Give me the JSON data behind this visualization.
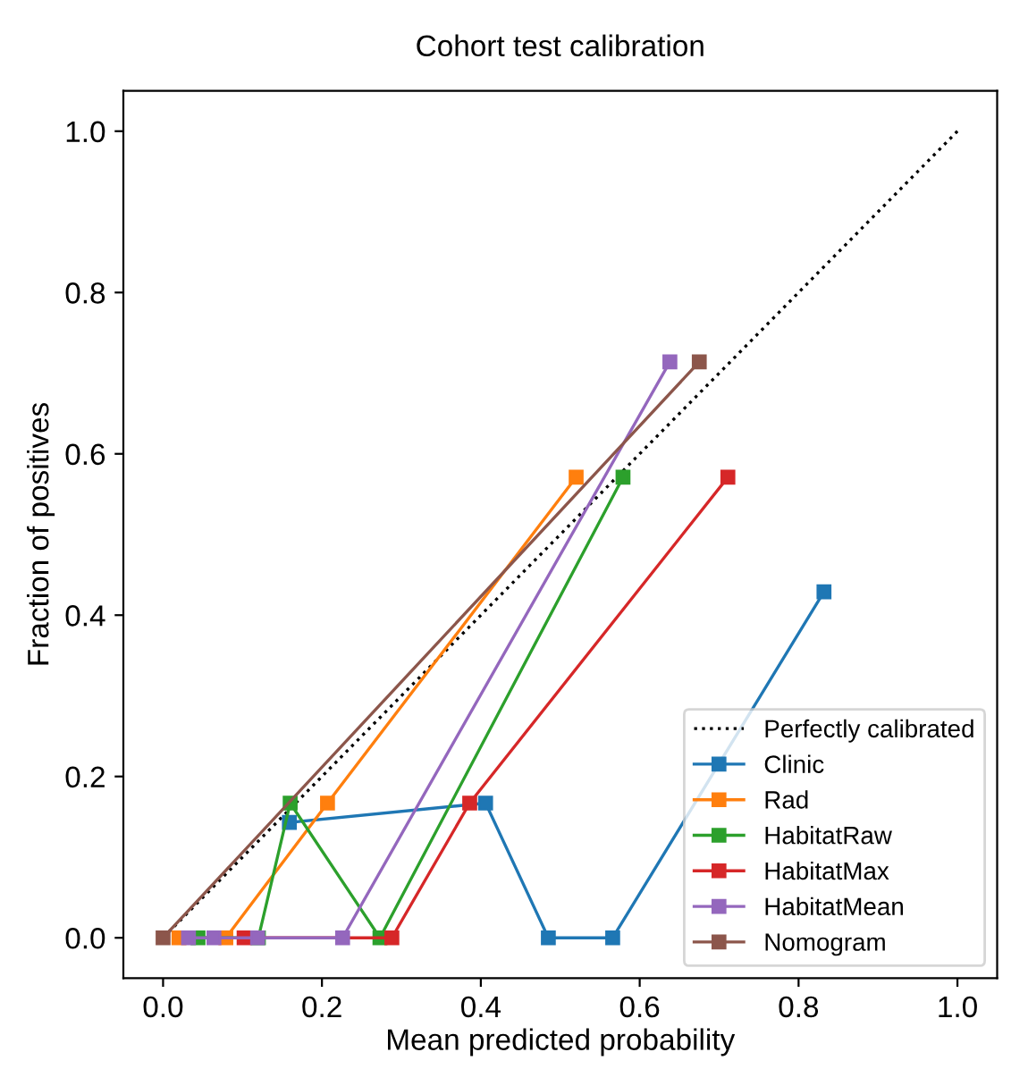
{
  "chart_data": {
    "type": "line",
    "title": "Cohort test calibration",
    "xlabel": "Mean predicted probability",
    "ylabel": "Fraction of positives",
    "xlim": [
      -0.05,
      1.05
    ],
    "ylim": [
      -0.05,
      1.05
    ],
    "xticks": [
      {
        "value": 0,
        "label": "0.0"
      },
      0.2,
      0.4,
      0.6,
      0.8,
      {
        "value": 1,
        "label": "1.0"
      }
    ],
    "yticks": [
      {
        "value": 0,
        "label": "0.0"
      },
      0.2,
      0.4,
      0.6,
      0.8,
      {
        "value": 1,
        "label": "1.0"
      }
    ],
    "grid": false,
    "legend": "bottom right",
    "marker": "square",
    "series": [
      {
        "name": "Perfectly calibrated",
        "color": "#000000",
        "x": [
          0,
          1
        ],
        "values": [
          0,
          1
        ],
        "line_style": "dotted",
        "marker": "none"
      },
      {
        "name": "Clinic",
        "color": "#1f77b4",
        "x": [
          0.159,
          0.406,
          0.485,
          0.566,
          0.832
        ],
        "values": [
          0.143,
          0.167,
          0,
          0,
          0.429
        ]
      },
      {
        "name": "Rad",
        "color": "#ff7f0e",
        "x": [
          0.02,
          0.079,
          0.207,
          0.52
        ],
        "values": [
          0,
          0,
          0.167,
          0.571
        ]
      },
      {
        "name": "HabitatRaw",
        "color": "#2ca02c",
        "x": [
          0.044,
          0.12,
          0.16,
          0.273,
          0.579
        ],
        "values": [
          0,
          0,
          0.167,
          0,
          0.571
        ]
      },
      {
        "name": "HabitatMax",
        "color": "#d62728",
        "x": [
          0.102,
          0.288,
          0.386,
          0.711
        ],
        "values": [
          0,
          0,
          0.167,
          0.571
        ]
      },
      {
        "name": "HabitatMean",
        "color": "#9467bd",
        "x": [
          0.032,
          0.064,
          0.119,
          0.226,
          0.638
        ],
        "values": [
          0,
          0,
          0,
          0,
          0.714
        ]
      },
      {
        "name": "Nomogram",
        "color": "#8c564b",
        "x": [
          0,
          0.675
        ],
        "values": [
          0,
          0.714
        ]
      }
    ]
  }
}
